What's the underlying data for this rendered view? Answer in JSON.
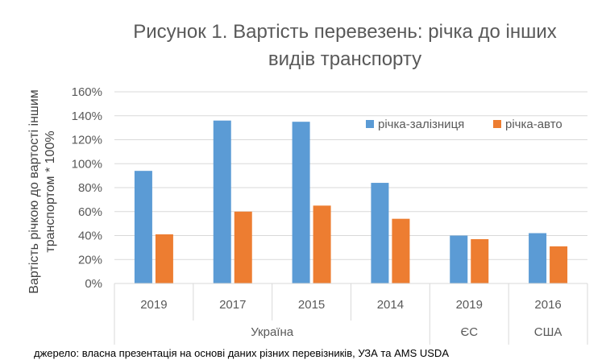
{
  "chart_data": {
    "type": "bar",
    "title_lines": [
      "Рисунок 1. Вартість перевезень: річка до інших",
      "видів транспорту"
    ],
    "ylabel_lines": [
      "Вартість річкою до вартості іншим",
      "транспортом * 100%"
    ],
    "xlabel": "",
    "y_ticks": [
      "0%",
      "20%",
      "40%",
      "60%",
      "80%",
      "100%",
      "120%",
      "140%",
      "160%"
    ],
    "ylim": [
      0,
      160
    ],
    "categories": [
      "2019",
      "2017",
      "2015",
      "2014",
      "2019",
      "2016"
    ],
    "groups": [
      {
        "label": "Україна",
        "count": 4
      },
      {
        "label": "ЄС",
        "count": 1
      },
      {
        "label": "США",
        "count": 1
      }
    ],
    "series": [
      {
        "name": "річка-залізниця",
        "color": "#5B9BD5",
        "values": [
          94,
          136,
          135,
          84,
          40,
          42
        ]
      },
      {
        "name": "річка-авто",
        "color": "#ED7D31",
        "values": [
          41,
          60,
          65,
          54,
          37,
          31
        ]
      }
    ],
    "legend_position": "top-right",
    "grid": true
  },
  "source_note": "джерело: власна презентація на основі даних різних перевізників, УЗА та AMS USDA"
}
